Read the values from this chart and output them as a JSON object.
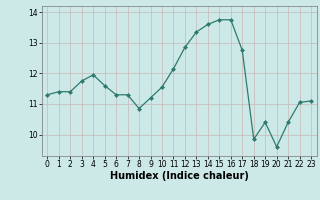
{
  "x": [
    0,
    1,
    2,
    3,
    4,
    5,
    6,
    7,
    8,
    9,
    10,
    11,
    12,
    13,
    14,
    15,
    16,
    17,
    18,
    19,
    20,
    21,
    22,
    23
  ],
  "y": [
    11.3,
    11.4,
    11.4,
    11.75,
    11.95,
    11.6,
    11.3,
    11.3,
    10.85,
    11.2,
    11.55,
    12.15,
    12.85,
    13.35,
    13.6,
    13.75,
    13.75,
    12.75,
    9.85,
    10.4,
    9.6,
    10.4,
    11.05,
    11.1
  ],
  "line_color": "#2e7b6e",
  "marker": "D",
  "marker_size": 2.0,
  "bg_color": "#cce9e8",
  "grid_color": "#c8b8b8",
  "xlabel": "Humidex (Indice chaleur)",
  "xlim": [
    -0.5,
    23.5
  ],
  "ylim": [
    9.3,
    14.2
  ],
  "yticks": [
    10,
    11,
    12,
    13,
    14
  ],
  "xticks": [
    0,
    1,
    2,
    3,
    4,
    5,
    6,
    7,
    8,
    9,
    10,
    11,
    12,
    13,
    14,
    15,
    16,
    17,
    18,
    19,
    20,
    21,
    22,
    23
  ],
  "tick_fontsize": 5.5,
  "xlabel_fontsize": 7.0,
  "lw": 0.9
}
